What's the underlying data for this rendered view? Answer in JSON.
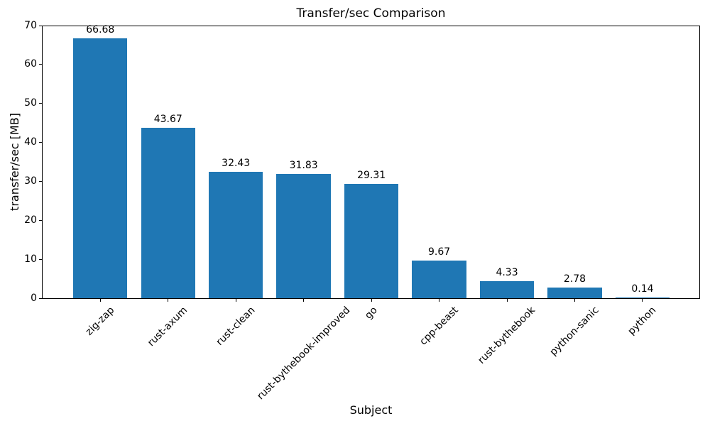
{
  "chart_data": {
    "type": "bar",
    "title": "Transfer/sec Comparison",
    "xlabel": "Subject",
    "ylabel": "transfer/sec [MB]",
    "categories": [
      "zig-zap",
      "rust-axum",
      "rust-clean",
      "rust-bythebook-improved",
      "go",
      "cpp-beast",
      "rust-bythebook",
      "python-sanic",
      "python"
    ],
    "values": [
      66.68,
      43.67,
      32.43,
      31.83,
      29.31,
      9.67,
      4.33,
      2.78,
      0.14
    ],
    "value_labels": [
      "66.68",
      "43.67",
      "32.43",
      "31.83",
      "29.31",
      "9.67",
      "4.33",
      "2.78",
      "0.14"
    ],
    "ylim": [
      0,
      70
    ],
    "yticks": [
      0,
      10,
      20,
      30,
      40,
      50,
      60,
      70
    ],
    "x_tick_rotation_deg": 45,
    "bar_color": "#1f77b4",
    "spine_color": "#000000",
    "background_color": "#ffffff",
    "grid": false,
    "legend": false
  }
}
